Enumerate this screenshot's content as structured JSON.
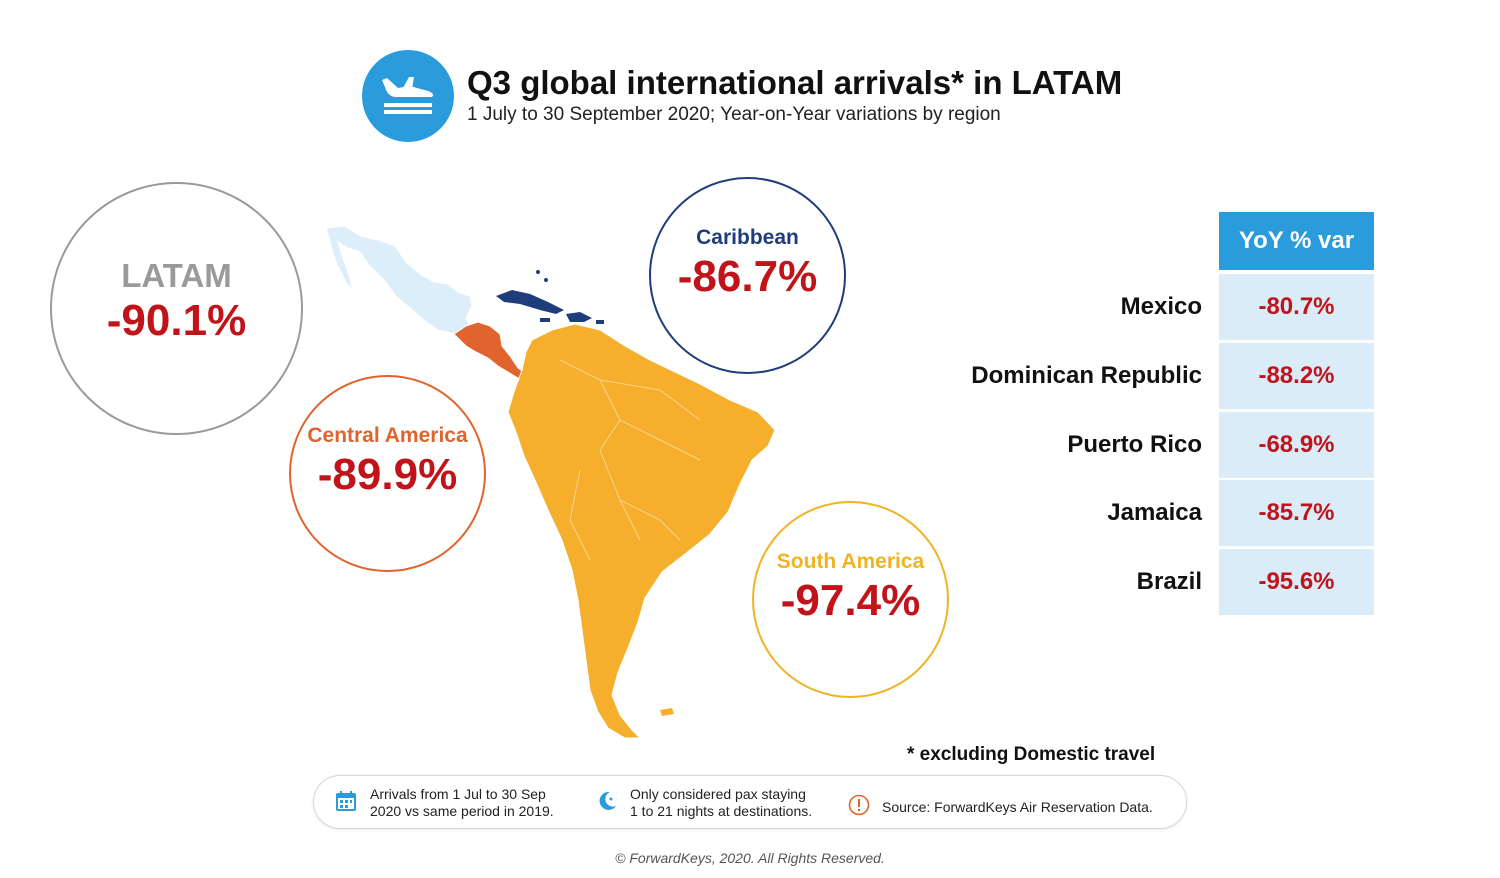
{
  "header": {
    "title": "Q3 global international arrivals* in LATAM",
    "subtitle": "1 July to 30 September 2020; Year-on-Year variations by region"
  },
  "regions": {
    "latam": {
      "name": "LATAM",
      "value": "-90.1%",
      "color": "#9a9a9a"
    },
    "caribbean": {
      "name": "Caribbean",
      "value": "-86.7%",
      "color": "#1f3d7a"
    },
    "central_america": {
      "name": "Central America",
      "value": "-89.9%",
      "color": "#e0642d"
    },
    "south_america": {
      "name": "South America",
      "value": "-97.4%",
      "color": "#f0b323"
    }
  },
  "table": {
    "header": "YoY % var",
    "rows": [
      {
        "country": "Mexico",
        "value": "-80.7%"
      },
      {
        "country": "Dominican Republic",
        "value": "-88.2%"
      },
      {
        "country": "Puerto Rico",
        "value": "-68.9%"
      },
      {
        "country": "Jamaica",
        "value": "-85.7%"
      },
      {
        "country": "Brazil",
        "value": "-95.6%"
      }
    ]
  },
  "footnote": "* excluding Domestic travel",
  "notes": [
    {
      "icon": "calendar-icon",
      "line1": "Arrivals from 1 Jul to 30 Sep",
      "line2": "2020 vs same period in 2019."
    },
    {
      "icon": "moon-icon",
      "line1": "Only considered pax staying",
      "line2": "1 to 21 nights at destinations."
    },
    {
      "icon": "exclamation-icon",
      "line1": "Source: ForwardKeys Air Reservation Data.",
      "line2": ""
    }
  ],
  "copyright": "© ForwardKeys, 2020. All Rights Reserved.",
  "colors": {
    "accent_blue": "#2a9bdb",
    "value_red": "#c0141a",
    "table_cell": "#d9ecf8",
    "mexico_fill": "#dceef9"
  }
}
